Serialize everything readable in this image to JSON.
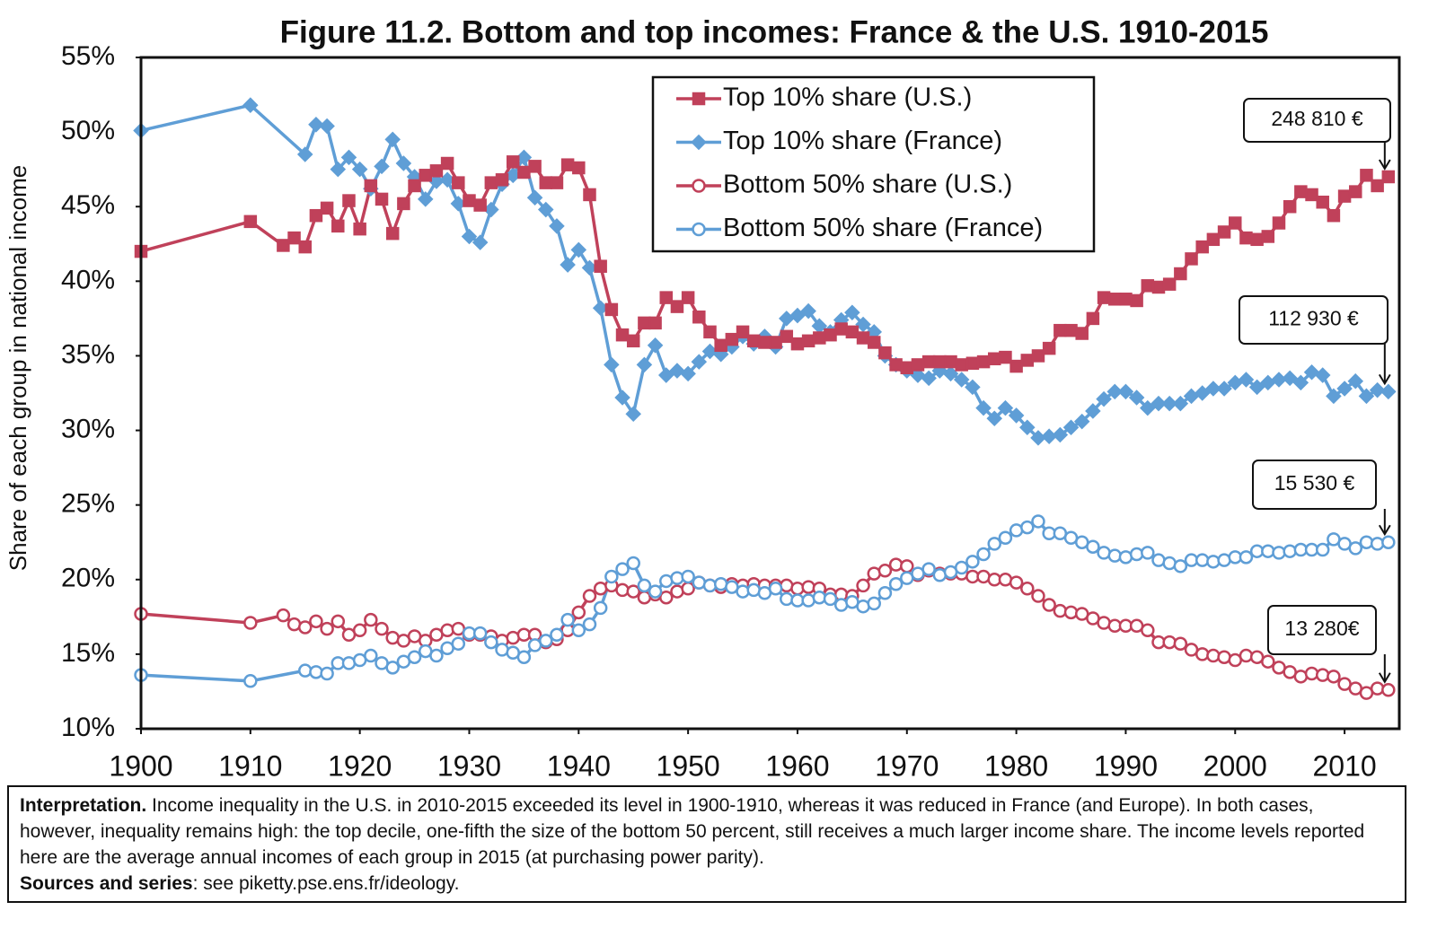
{
  "chart_data": {
    "type": "line",
    "title": "Figure 11.2. Bottom and top incomes: France & the U.S. 1910-2015",
    "y_label": "Share of each group in national income",
    "xlim": [
      1900,
      2015
    ],
    "xticks": [
      1900,
      1910,
      1920,
      1930,
      1940,
      1950,
      1960,
      1970,
      1980,
      1990,
      2000,
      2010
    ],
    "ylim": [
      10,
      55
    ],
    "yticks": [
      {
        "value": 10,
        "label": "10%"
      },
      {
        "value": 15,
        "label": "15%"
      },
      {
        "value": 20,
        "label": "20%"
      },
      {
        "value": 25,
        "label": "25%"
      },
      {
        "value": 30,
        "label": "30%"
      },
      {
        "value": 35,
        "label": "35%"
      },
      {
        "value": 40,
        "label": "40%"
      },
      {
        "value": 45,
        "label": "45%"
      },
      {
        "value": 50,
        "label": "50%"
      },
      {
        "value": 55,
        "label": "55%"
      }
    ],
    "legend": "top-center",
    "series": [
      {
        "name": "Top 10% share (U.S.)",
        "color": "#c0415a",
        "marker": "square",
        "filled": true,
        "end_label": "248 810 €",
        "x": [
          1900,
          1910,
          1913,
          1914,
          1915,
          1916,
          1917,
          1918,
          1919,
          1920,
          1921,
          1922,
          1923,
          1924,
          1925,
          1926,
          1927,
          1928,
          1929,
          1930,
          1931,
          1932,
          1933,
          1934,
          1935,
          1936,
          1937,
          1938,
          1939,
          1940,
          1941,
          1942,
          1943,
          1944,
          1945,
          1946,
          1947,
          1948,
          1949,
          1950,
          1951,
          1952,
          1953,
          1954,
          1955,
          1956,
          1957,
          1958,
          1959,
          1960,
          1961,
          1962,
          1963,
          1964,
          1965,
          1966,
          1967,
          1968,
          1969,
          1970,
          1971,
          1972,
          1973,
          1974,
          1975,
          1976,
          1977,
          1978,
          1979,
          1980,
          1981,
          1982,
          1983,
          1984,
          1985,
          1986,
          1987,
          1988,
          1989,
          1990,
          1991,
          1992,
          1993,
          1994,
          1995,
          1996,
          1997,
          1998,
          1999,
          2000,
          2001,
          2002,
          2003,
          2004,
          2005,
          2006,
          2007,
          2008,
          2009,
          2010,
          2011,
          2012,
          2013,
          2014
        ],
        "values": [
          42.0,
          44.0,
          42.4,
          42.9,
          42.3,
          44.4,
          44.9,
          43.7,
          45.4,
          43.5,
          46.4,
          45.5,
          43.2,
          45.2,
          46.4,
          47.1,
          47.4,
          47.9,
          46.6,
          45.4,
          45.1,
          46.6,
          46.8,
          48.0,
          47.3,
          47.7,
          46.6,
          46.6,
          47.8,
          47.6,
          45.8,
          41.0,
          38.1,
          36.4,
          36.0,
          37.2,
          37.2,
          38.9,
          38.3,
          38.9,
          37.6,
          36.6,
          35.7,
          36.1,
          36.6,
          36.0,
          35.9,
          35.9,
          36.3,
          35.8,
          36.0,
          36.2,
          36.4,
          36.8,
          36.6,
          36.2,
          35.9,
          35.2,
          34.4,
          34.2,
          34.4,
          34.6,
          34.6,
          34.6,
          34.4,
          34.5,
          34.6,
          34.8,
          34.9,
          34.3,
          34.7,
          35.0,
          35.5,
          36.7,
          36.7,
          36.5,
          37.5,
          38.9,
          38.8,
          38.8,
          38.7,
          39.7,
          39.6,
          39.8,
          40.5,
          41.5,
          42.3,
          42.8,
          43.3,
          43.9,
          42.9,
          42.8,
          43.0,
          43.9,
          45.0,
          46.0,
          45.8,
          45.3,
          44.4,
          45.7,
          46.0,
          47.1,
          46.4,
          47.0
        ]
      },
      {
        "name": "Top 10% share (France)",
        "color": "#5f9ed6",
        "marker": "diamond",
        "filled": true,
        "end_label": "112 930 €",
        "x": [
          1900,
          1910,
          1915,
          1916,
          1917,
          1918,
          1919,
          1920,
          1921,
          1922,
          1923,
          1924,
          1925,
          1926,
          1927,
          1928,
          1929,
          1930,
          1931,
          1932,
          1933,
          1934,
          1935,
          1936,
          1937,
          1938,
          1939,
          1940,
          1941,
          1942,
          1943,
          1944,
          1945,
          1946,
          1947,
          1948,
          1949,
          1950,
          1951,
          1952,
          1953,
          1954,
          1955,
          1956,
          1957,
          1958,
          1959,
          1960,
          1961,
          1962,
          1963,
          1964,
          1965,
          1966,
          1967,
          1968,
          1969,
          1970,
          1971,
          1972,
          1973,
          1974,
          1975,
          1976,
          1977,
          1978,
          1979,
          1980,
          1981,
          1982,
          1983,
          1984,
          1985,
          1986,
          1987,
          1988,
          1989,
          1990,
          1991,
          1992,
          1993,
          1994,
          1995,
          1996,
          1997,
          1998,
          1999,
          2000,
          2001,
          2002,
          2003,
          2004,
          2005,
          2006,
          2007,
          2008,
          2009,
          2010,
          2011,
          2012,
          2013,
          2014
        ],
        "values": [
          50.1,
          51.8,
          48.5,
          50.5,
          50.4,
          47.5,
          48.3,
          47.5,
          46.2,
          47.7,
          49.5,
          47.9,
          47.0,
          45.5,
          46.7,
          46.8,
          45.2,
          43.0,
          42.6,
          44.8,
          46.5,
          47.1,
          48.3,
          45.6,
          44.8,
          43.7,
          41.1,
          42.1,
          40.9,
          38.2,
          34.4,
          32.2,
          31.1,
          34.4,
          35.7,
          33.7,
          34.0,
          33.8,
          34.6,
          35.3,
          35.1,
          35.6,
          36.3,
          35.8,
          36.3,
          35.6,
          37.5,
          37.7,
          38.0,
          37.0,
          36.6,
          37.4,
          37.9,
          37.1,
          36.6,
          35.0,
          34.4,
          34.0,
          33.7,
          33.5,
          34.0,
          33.8,
          33.4,
          32.9,
          31.5,
          30.8,
          31.5,
          31.0,
          30.2,
          29.5,
          29.6,
          29.7,
          30.2,
          30.6,
          31.3,
          32.1,
          32.6,
          32.6,
          32.2,
          31.5,
          31.8,
          31.8,
          31.8,
          32.3,
          32.5,
          32.8,
          32.8,
          33.2,
          33.4,
          32.9,
          33.2,
          33.4,
          33.5,
          33.2,
          33.9,
          33.7,
          32.3,
          32.8,
          33.3,
          32.3,
          32.7,
          32.6
        ]
      },
      {
        "name": "Bottom 50% share (U.S.)",
        "color": "#c0415a",
        "marker": "circle",
        "filled": false,
        "end_label": "13 280€",
        "x": [
          1900,
          1910,
          1913,
          1914,
          1915,
          1916,
          1917,
          1918,
          1919,
          1920,
          1921,
          1922,
          1923,
          1924,
          1925,
          1926,
          1927,
          1928,
          1929,
          1930,
          1931,
          1932,
          1933,
          1934,
          1935,
          1936,
          1937,
          1938,
          1939,
          1940,
          1941,
          1942,
          1943,
          1944,
          1945,
          1946,
          1947,
          1948,
          1949,
          1950,
          1951,
          1952,
          1953,
          1954,
          1955,
          1956,
          1957,
          1958,
          1959,
          1960,
          1961,
          1962,
          1963,
          1964,
          1965,
          1966,
          1967,
          1968,
          1969,
          1970,
          1971,
          1972,
          1973,
          1974,
          1975,
          1976,
          1977,
          1978,
          1979,
          1980,
          1981,
          1982,
          1983,
          1984,
          1985,
          1986,
          1987,
          1988,
          1989,
          1990,
          1991,
          1992,
          1993,
          1994,
          1995,
          1996,
          1997,
          1998,
          1999,
          2000,
          2001,
          2002,
          2003,
          2004,
          2005,
          2006,
          2007,
          2008,
          2009,
          2010,
          2011,
          2012,
          2013,
          2014
        ],
        "values": [
          17.7,
          17.1,
          17.6,
          17.0,
          16.8,
          17.2,
          16.7,
          17.2,
          16.3,
          16.6,
          17.3,
          16.7,
          16.1,
          15.9,
          16.2,
          15.9,
          16.3,
          16.6,
          16.7,
          16.3,
          16.3,
          16.2,
          15.9,
          16.1,
          16.3,
          16.3,
          15.8,
          16.0,
          16.6,
          17.8,
          18.9,
          19.4,
          19.6,
          19.3,
          19.2,
          18.8,
          19.0,
          18.8,
          19.2,
          19.4,
          19.8,
          19.6,
          19.5,
          19.7,
          19.6,
          19.7,
          19.6,
          19.6,
          19.6,
          19.4,
          19.5,
          19.4,
          19.0,
          19.0,
          18.9,
          19.6,
          20.4,
          20.6,
          21.0,
          20.9,
          20.3,
          20.6,
          20.4,
          20.4,
          20.4,
          20.2,
          20.2,
          20.0,
          20.0,
          19.8,
          19.4,
          18.9,
          18.3,
          17.9,
          17.8,
          17.7,
          17.4,
          17.1,
          16.9,
          16.9,
          16.9,
          16.6,
          15.8,
          15.8,
          15.7,
          15.3,
          15.0,
          14.9,
          14.8,
          14.6,
          14.9,
          14.8,
          14.5,
          14.1,
          13.8,
          13.5,
          13.7,
          13.6,
          13.5,
          13.0,
          12.7,
          12.4,
          12.7,
          12.6
        ]
      },
      {
        "name": "Bottom 50% share (France)",
        "color": "#5f9ed6",
        "marker": "circle",
        "filled": false,
        "end_label": "15 530 €",
        "x": [
          1900,
          1910,
          1915,
          1916,
          1917,
          1918,
          1919,
          1920,
          1921,
          1922,
          1923,
          1924,
          1925,
          1926,
          1927,
          1928,
          1929,
          1930,
          1931,
          1932,
          1933,
          1934,
          1935,
          1936,
          1937,
          1938,
          1939,
          1940,
          1941,
          1942,
          1943,
          1944,
          1945,
          1946,
          1947,
          1948,
          1949,
          1950,
          1951,
          1952,
          1953,
          1954,
          1955,
          1956,
          1957,
          1958,
          1959,
          1960,
          1961,
          1962,
          1963,
          1964,
          1965,
          1966,
          1967,
          1968,
          1969,
          1970,
          1971,
          1972,
          1973,
          1974,
          1975,
          1976,
          1977,
          1978,
          1979,
          1980,
          1981,
          1982,
          1983,
          1984,
          1985,
          1986,
          1987,
          1988,
          1989,
          1990,
          1991,
          1992,
          1993,
          1994,
          1995,
          1996,
          1997,
          1998,
          1999,
          2000,
          2001,
          2002,
          2003,
          2004,
          2005,
          2006,
          2007,
          2008,
          2009,
          2010,
          2011,
          2012,
          2013,
          2014
        ],
        "values": [
          13.6,
          13.2,
          13.9,
          13.8,
          13.7,
          14.4,
          14.4,
          14.6,
          14.9,
          14.4,
          14.1,
          14.5,
          14.8,
          15.2,
          14.9,
          15.4,
          15.7,
          16.4,
          16.4,
          15.8,
          15.3,
          15.1,
          14.8,
          15.6,
          15.9,
          16.3,
          17.3,
          16.6,
          17.0,
          18.1,
          20.2,
          20.7,
          21.1,
          19.6,
          19.2,
          19.9,
          20.1,
          20.2,
          19.8,
          19.6,
          19.7,
          19.5,
          19.2,
          19.3,
          19.1,
          19.4,
          18.7,
          18.6,
          18.6,
          18.8,
          18.7,
          18.3,
          18.5,
          18.2,
          18.4,
          19.1,
          19.7,
          20.1,
          20.4,
          20.7,
          20.3,
          20.5,
          20.8,
          21.2,
          21.7,
          22.4,
          22.8,
          23.3,
          23.5,
          23.9,
          23.1,
          23.1,
          22.8,
          22.5,
          22.2,
          21.8,
          21.6,
          21.5,
          21.7,
          21.8,
          21.3,
          21.1,
          20.9,
          21.3,
          21.3,
          21.2,
          21.3,
          21.5,
          21.5,
          21.9,
          21.9,
          21.8,
          21.9,
          22.0,
          22.0,
          22.0,
          22.7,
          22.4,
          22.1,
          22.5,
          22.4,
          22.5
        ]
      }
    ]
  },
  "note": {
    "interpretation_label": "Interpretation.",
    "interpretation": "Income inequality in the U.S. in 2010-2015 exceeded its level in 1900-1910, whereas it was reduced in France (and Europe). In both cases, however, inequality remains high: the top decile, one-fifth the size of the bottom 50 percent, still receives a much larger income share. The income levels reported here are the average annual incomes of each group in 2015 (at purchasing power parity).",
    "sources_label": "Sources and series",
    "sources": ": see piketty.pse.ens.fr/ideology."
  }
}
